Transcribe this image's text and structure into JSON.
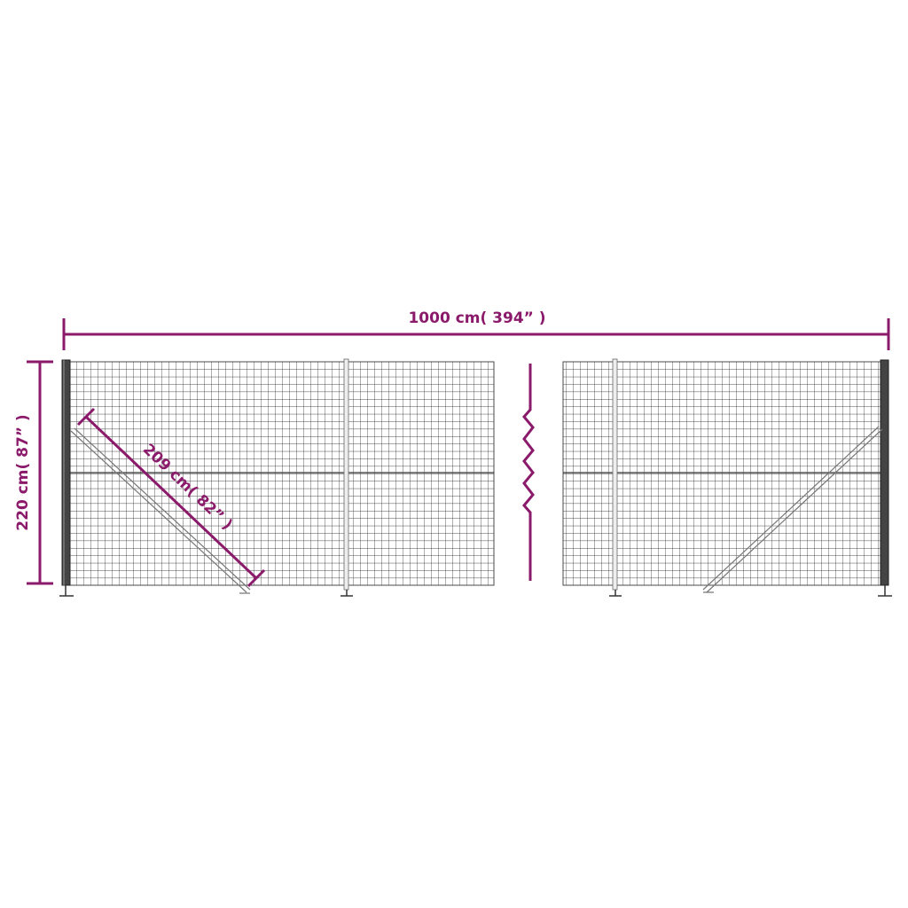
{
  "dimensions": {
    "length_label": "1000 cm( 394” )",
    "height_label": "220 cm( 87” )",
    "diagonal_label": "209 cm( 82” )"
  },
  "colors": {
    "dimension": "#8b1a6b",
    "mesh": "#4a4a4a",
    "post": "#333333"
  }
}
